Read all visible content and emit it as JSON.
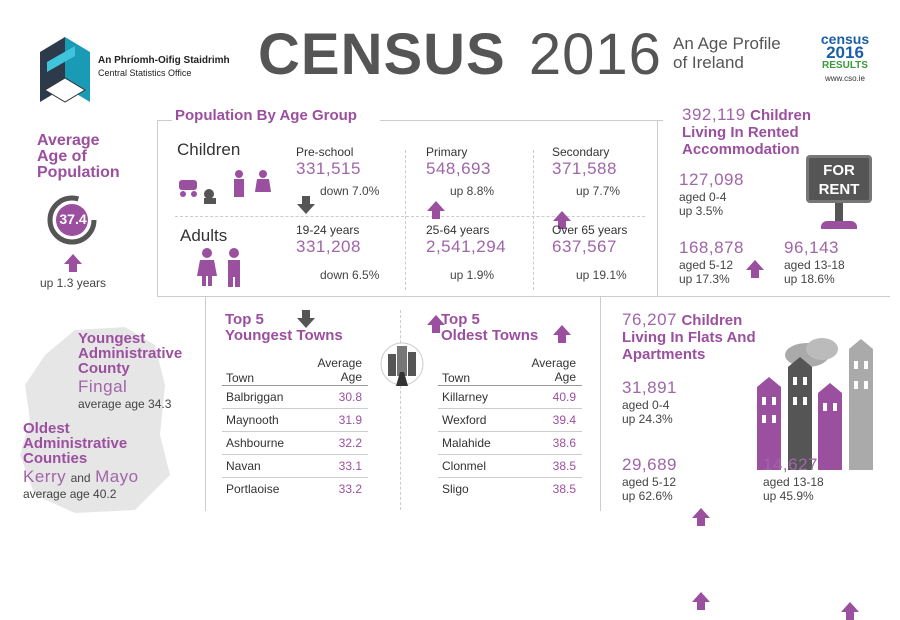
{
  "header": {
    "org_irish": "An Phríomh-Oifig Staidrimh",
    "org_english": "Central Statistics Office",
    "logo_text": "CSO",
    "census_word": "CENSUS",
    "census_year": "2016",
    "subtitle_line1": "An Age Profile",
    "subtitle_line2": "of Ireland",
    "badge": {
      "line1": "census",
      "line2": "2016",
      "line3": "RESULTS",
      "line4": "www.cso.ie"
    }
  },
  "average_age": {
    "title_line1": "Average",
    "title_line2": "Age of",
    "title_line3": "Population",
    "value": "37.4",
    "change": "up 1.3 years"
  },
  "age_groups": {
    "title": "Population By Age Group",
    "children_label": "Children",
    "adults_label": "Adults",
    "children": [
      {
        "label": "Pre-school",
        "value": "331,515",
        "change": "down 7.0%",
        "direction": "down"
      },
      {
        "label": "Primary",
        "value": "548,693",
        "change": "up 8.8%",
        "direction": "up"
      },
      {
        "label": "Secondary",
        "value": "371,588",
        "change": "up 7.7%",
        "direction": "up"
      }
    ],
    "adults": [
      {
        "label": "19-24 years",
        "value": "331,208",
        "change": "down 6.5%",
        "direction": "down"
      },
      {
        "label": "25-64  years",
        "value": "2,541,294",
        "change": "up 1.9%",
        "direction": "up"
      },
      {
        "label": "Over 65 years",
        "value": "637,567",
        "change": "up 19.1%",
        "direction": "up"
      }
    ]
  },
  "rented": {
    "total": "392,119",
    "title_a": "Children",
    "title_b": "Living In Rented",
    "title_c": "Accommodation",
    "sign_line1": "FOR",
    "sign_line2": "RENT",
    "groups": [
      {
        "value": "127,098",
        "age": "aged 0-4",
        "change": "up 3.5%"
      },
      {
        "value": "168,878",
        "age": "aged 5-12",
        "change": "up 17.3%"
      },
      {
        "value": "96,143",
        "age": "aged 13-18",
        "change": "up 18.6%"
      }
    ]
  },
  "counties": {
    "youngest_title_1": "Youngest",
    "youngest_title_2": "Administrative",
    "youngest_title_3": "County",
    "youngest_name": "Fingal",
    "youngest_avg": "average age 34.3",
    "oldest_title_1": "Oldest",
    "oldest_title_2": "Administrative",
    "oldest_title_3": "Counties",
    "oldest_name_a": "Kerry",
    "oldest_and": "and",
    "oldest_name_b": "Mayo",
    "oldest_avg": "average age 40.2"
  },
  "youngest_towns": {
    "title_1": "Top 5",
    "title_2": "Youngest Towns",
    "col_town": "Town",
    "col_avg_1": "Average",
    "col_avg_2": "Age",
    "rows": [
      {
        "town": "Balbriggan",
        "age": "30.8"
      },
      {
        "town": "Maynooth",
        "age": "31.9"
      },
      {
        "town": "Ashbourne",
        "age": "32.2"
      },
      {
        "town": "Navan",
        "age": "33.1"
      },
      {
        "town": "Portlaoise",
        "age": "33.2"
      }
    ]
  },
  "oldest_towns": {
    "title_1": "Top 5",
    "title_2": "Oldest Towns",
    "col_town": "Town",
    "col_avg_1": "Average",
    "col_avg_2": "Age",
    "rows": [
      {
        "town": "Killarney",
        "age": "40.9"
      },
      {
        "town": "Wexford",
        "age": "39.4"
      },
      {
        "town": "Malahide",
        "age": "38.6"
      },
      {
        "town": "Clonmel",
        "age": "38.5"
      },
      {
        "town": "Sligo",
        "age": "38.5"
      }
    ]
  },
  "flats": {
    "total": "76,207",
    "title_a": "Children",
    "title_b": "Living In Flats And",
    "title_c": "Apartments",
    "groups": [
      {
        "value": "31,891",
        "age": "aged 0-4",
        "change": "up 24.3%"
      },
      {
        "value": "29,689",
        "age": "aged 5-12",
        "change": "up 62.6%"
      },
      {
        "value": "14,627",
        "age": "aged 13-18",
        "change": "up 45.9%"
      }
    ]
  },
  "colors": {
    "purple": "#9b4f9f",
    "gray": "#555555",
    "light_purple": "#b07ab8"
  }
}
